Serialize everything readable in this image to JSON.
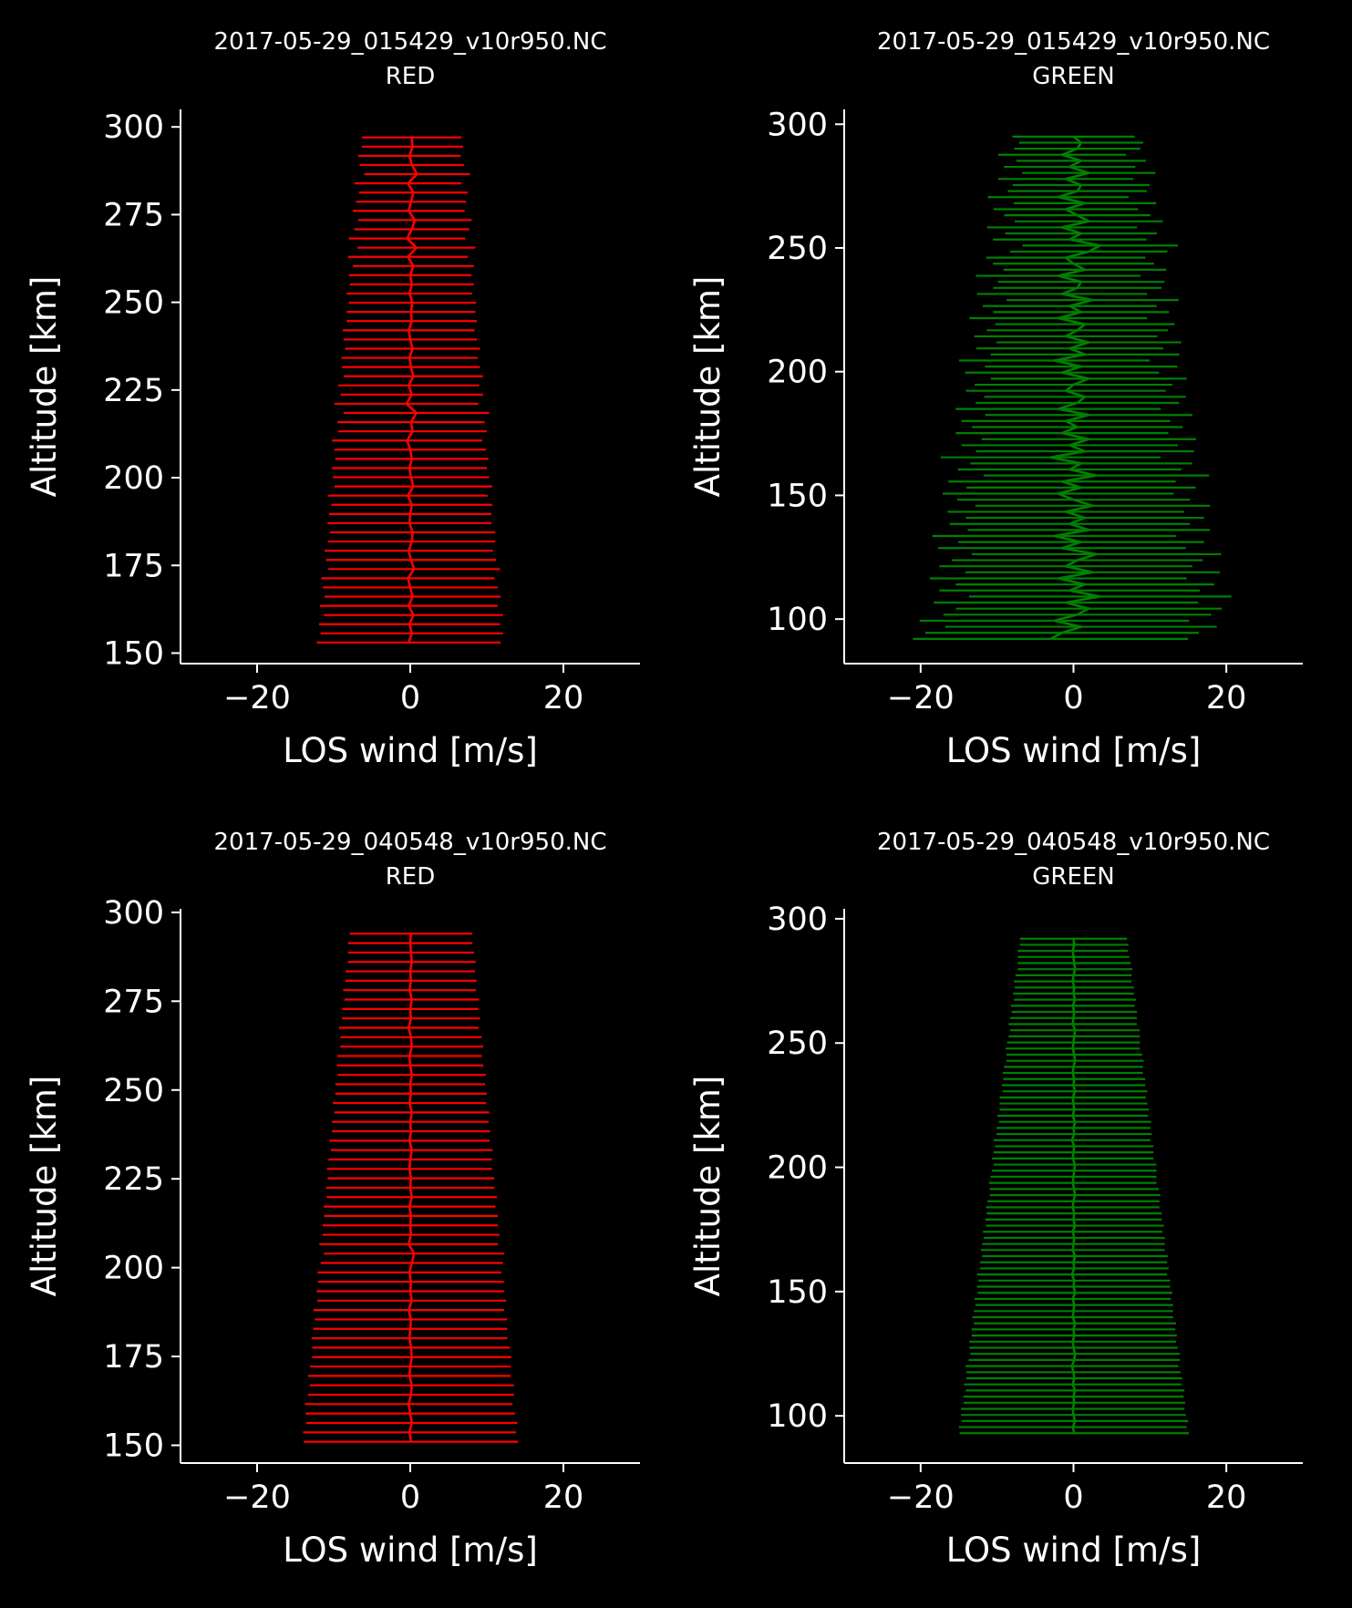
{
  "colors": {
    "background": "#000000",
    "foreground": "#ffffff",
    "red": "#ff0000",
    "green": "#008000"
  },
  "chart_data": [
    {
      "type": "line",
      "style": "errorbar",
      "title": [
        "2017-05-29_015429_v10r950.NC",
        "RED"
      ],
      "xlabel": "LOS wind [m/s]",
      "ylabel": "Altitude [km]",
      "xlim": [
        -30,
        30
      ],
      "ylim": [
        147,
        305
      ],
      "xticks": [
        -20,
        0,
        20
      ],
      "xtick_labels": [
        "−20",
        "0",
        "20"
      ],
      "yticks": [
        150,
        175,
        200,
        225,
        250,
        275,
        300
      ],
      "ytick_labels": [
        "150",
        "175",
        "200",
        "225",
        "250",
        "275",
        "300"
      ],
      "color": "#ff0000",
      "grid": false,
      "profile": {
        "alt_min": 153,
        "alt_max": 297,
        "n_levels": 56,
        "center_wind": [
          -0.2,
          0.2,
          -0.1,
          0.4,
          -0.2,
          0.3,
          0.0,
          -0.3,
          0.5,
          0.1,
          -0.2,
          0.2,
          0.3,
          -0.1,
          0.0,
          0.2,
          -0.3,
          0.4,
          0.1,
          -0.1,
          0.2,
          0.0,
          -0.4,
          0.3,
          0.1,
          0.8,
          -0.5,
          0.2,
          -0.2,
          0.4,
          0.1,
          -0.1,
          0.3,
          0.0,
          -0.2,
          0.2,
          0.1,
          0.3,
          -0.1,
          0.2,
          0.0,
          0.4,
          -0.3,
          0.8,
          -0.4,
          0.2,
          0.6,
          -0.2,
          0.1,
          0.4,
          -0.3,
          0.9,
          0.2,
          -0.1,
          0.3,
          0.2
        ],
        "half_width_bottom": 12,
        "half_width_top": 6.5
      }
    },
    {
      "type": "line",
      "style": "errorbar",
      "title": [
        "2017-05-29_015429_v10r950.NC",
        "GREEN"
      ],
      "xlabel": "LOS wind [m/s]",
      "ylabel": "Altitude [km]",
      "xlim": [
        -30,
        30
      ],
      "ylim": [
        82,
        306
      ],
      "xticks": [
        -20,
        0,
        20
      ],
      "xtick_labels": [
        "−20",
        "0",
        "20"
      ],
      "yticks": [
        100,
        150,
        200,
        250,
        300
      ],
      "ytick_labels": [
        "100",
        "150",
        "200",
        "250",
        "300"
      ],
      "color": "#008000",
      "grid": false,
      "profile": {
        "alt_min": 92,
        "alt_max": 295,
        "n_levels": 84,
        "center_wind": [
          -3.0,
          -1.5,
          1.0,
          -2.5,
          0.5,
          2.0,
          -1.0,
          3.5,
          -0.5,
          1.5,
          -2.0,
          2.5,
          -1.0,
          0.5,
          3.0,
          -1.5,
          1.0,
          -2.5,
          2.0,
          -0.5,
          1.5,
          -1.0,
          2.5,
          0.0,
          -2.0,
          1.0,
          -1.5,
          3.0,
          -0.5,
          1.0,
          -3.0,
          1.5,
          -0.5,
          2.0,
          -1.5,
          0.5,
          -1.0,
          2.0,
          -2.0,
          0.5,
          1.5,
          -1.0,
          0.0,
          2.0,
          -1.5,
          1.0,
          -2.5,
          1.5,
          -0.5,
          2.0,
          -1.0,
          0.5,
          1.5,
          -2.0,
          1.0,
          -0.5,
          2.5,
          -1.5,
          0.5,
          1.0,
          -2.0,
          1.5,
          0.0,
          -1.0,
          2.0,
          3.5,
          -0.5,
          1.0,
          -1.5,
          2.0,
          0.5,
          -1.0,
          1.5,
          -2.0,
          0.5,
          1.0,
          -1.0,
          2.0,
          -0.5,
          1.0,
          -1.5,
          0.5,
          1.0,
          0.0
        ],
        "half_width_bottom": 18,
        "half_width_top": 8
      }
    },
    {
      "type": "line",
      "style": "errorbar",
      "title": [
        "2017-05-29_040548_v10r950.NC",
        "RED"
      ],
      "xlabel": "LOS wind [m/s]",
      "ylabel": "Altitude [km]",
      "xlim": [
        -30,
        30
      ],
      "ylim": [
        145,
        301
      ],
      "xticks": [
        -20,
        0,
        20
      ],
      "xtick_labels": [
        "−20",
        "0",
        "20"
      ],
      "yticks": [
        150,
        175,
        200,
        225,
        250,
        275,
        300
      ],
      "ytick_labels": [
        "150",
        "175",
        "200",
        "225",
        "250",
        "275",
        "300"
      ],
      "color": "#ff0000",
      "grid": false,
      "profile": {
        "alt_min": 151,
        "alt_max": 294,
        "n_levels": 55,
        "center_wind": [
          0.1,
          -0.1,
          0.2,
          0.0,
          -0.2,
          0.1,
          0.2,
          -0.1,
          0.0,
          0.2,
          0.1,
          -0.1,
          0.0,
          0.1,
          -0.2,
          0.2,
          0.0,
          0.1,
          -0.1,
          0.2,
          0.5,
          -0.2,
          0.1,
          0.0,
          0.1,
          -0.1,
          0.2,
          0.0,
          0.1,
          -0.1,
          0.0,
          0.2,
          -0.1,
          0.1,
          0.0,
          0.2,
          -0.1,
          0.1,
          0.0,
          0.2,
          0.0,
          -0.1,
          0.2,
          0.1,
          -0.2,
          0.1,
          0.0,
          0.2,
          -0.1,
          0.1,
          0.0,
          0.2,
          0.1,
          0.0,
          0.1
        ],
        "half_width_bottom": 14,
        "half_width_top": 8
      }
    },
    {
      "type": "line",
      "style": "errorbar",
      "title": [
        "2017-05-29_040548_v10r950.NC",
        "GREEN"
      ],
      "xlabel": "LOS wind [m/s]",
      "ylabel": "Altitude [km]",
      "xlim": [
        -30,
        30
      ],
      "ylim": [
        81,
        304
      ],
      "xticks": [
        -20,
        0,
        20
      ],
      "xtick_labels": [
        "−20",
        "0",
        "20"
      ],
      "yticks": [
        100,
        150,
        200,
        250,
        300
      ],
      "ytick_labels": [
        "100",
        "150",
        "200",
        "250",
        "300"
      ],
      "color": "#008000",
      "grid": false,
      "profile": {
        "alt_min": 93,
        "alt_max": 292,
        "n_levels": 82,
        "center_wind": [
          0.1,
          -0.1,
          0.2,
          0.0,
          -0.1,
          0.1,
          0.0,
          0.2,
          -0.1,
          0.1,
          0.0,
          -0.2,
          0.1,
          0.2,
          0.0,
          -0.1,
          0.1,
          0.0,
          0.2,
          -0.1,
          0.0,
          0.1,
          -0.1,
          0.2,
          0.0,
          0.1,
          -0.2,
          0.1,
          0.0,
          0.2,
          -0.1,
          0.0,
          0.1,
          -0.1,
          0.2,
          0.0,
          0.1,
          -0.1,
          0.0,
          0.2,
          0.1,
          -0.1,
          0.0,
          0.1,
          0.2,
          -0.1,
          0.0,
          0.1,
          -0.2,
          0.1,
          0.0,
          0.2,
          -0.1,
          0.1,
          0.0,
          -0.1,
          0.2,
          0.0,
          0.1,
          -0.1,
          0.0,
          0.2,
          0.1,
          -0.1,
          0.0,
          0.1,
          0.2,
          -0.1,
          0.0,
          0.1,
          -0.1,
          0.2,
          0.0,
          0.1,
          -0.1,
          0.0,
          0.2,
          0.1,
          0.0,
          -0.1,
          0.1,
          0.0
        ],
        "half_width_bottom": 15,
        "half_width_top": 7
      }
    }
  ]
}
